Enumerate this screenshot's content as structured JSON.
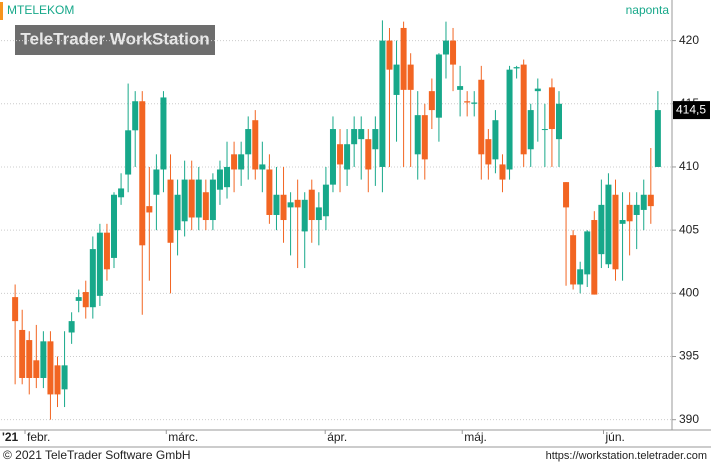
{
  "header": {
    "symbol": "MTELEKOM",
    "period": "naponta",
    "watermark": "TeleTrader WorkStation"
  },
  "footer": {
    "copyright": "© 2021 TeleTrader Software GmbH",
    "url": "https://workstation.teletrader.com"
  },
  "chart_data": {
    "type": "candlestick",
    "up_color": "#17a88a",
    "down_color": "#f26522",
    "ylim": [
      389.5,
      422.5
    ],
    "yticks": [
      390,
      395,
      400,
      405,
      410,
      415,
      420
    ],
    "grid": true,
    "last": {
      "value": 414.5,
      "label": "414,5"
    },
    "year_label": "'21",
    "xlim": [
      -2,
      93
    ],
    "xticks": [
      {
        "value": 1.4,
        "label": "febr."
      },
      {
        "value": 21.4,
        "label": "márc."
      },
      {
        "value": 43.9,
        "label": "ápr."
      },
      {
        "value": 63.3,
        "label": "máj."
      },
      {
        "value": 83.3,
        "label": "jún."
      }
    ],
    "open": [
      399.7,
      397.1,
      396.3,
      394.7,
      393.3,
      396.2,
      394.3,
      392.4,
      396.9,
      399.4,
      400.1,
      398.9,
      399.8,
      404.8,
      402.8,
      407.6,
      409.4,
      412.9,
      415.2,
      406.9,
      407.8,
      409.8,
      409,
      405,
      405.7,
      409,
      406,
      408,
      405.8,
      408.2,
      408.4,
      411,
      409.8,
      411,
      413.7,
      409.8,
      409.8,
      406.2,
      407.8,
      406.8,
      407.4,
      404.9,
      408.2,
      405.8,
      406.1,
      408.6,
      411.8,
      409.8,
      411.8,
      412.2,
      412.2,
      411.4,
      410,
      420,
      415.7,
      421,
      418.1,
      411,
      414.1,
      416,
      413.9,
      418.9,
      420,
      416.1,
      415.2,
      415,
      416.9,
      412.2,
      410.6,
      410.2,
      409.8,
      417.8,
      418.1,
      411.4,
      416,
      413,
      416.3,
      412.2,
      408.8,
      404.6,
      400.7,
      401.5,
      405.8,
      403.1,
      402.3,
      407.8,
      405.5,
      407,
      406.2,
      406.6,
      407.8,
      410
    ],
    "high": [
      400.7,
      398.7,
      397,
      397.5,
      397,
      397,
      395,
      397,
      398.5,
      400.3,
      401,
      404.5,
      405.5,
      405.5,
      408,
      409.5,
      416.6,
      416,
      416,
      410,
      411,
      416,
      411,
      409,
      410.5,
      410.5,
      410,
      409,
      409.5,
      410.5,
      412,
      412,
      412,
      414,
      414.5,
      412,
      411,
      410,
      410,
      408,
      409,
      408,
      409,
      408,
      410,
      414,
      413,
      413,
      414,
      414,
      413,
      414,
      421.6,
      421,
      420,
      421.5,
      419,
      416,
      415,
      417,
      419,
      421.5,
      421,
      418,
      416,
      416,
      418,
      413,
      414.5,
      411,
      418,
      418,
      418.5,
      415,
      417,
      415,
      417,
      416,
      408.8,
      405,
      402.5,
      405,
      406.5,
      409,
      409.5,
      409,
      408,
      408,
      408,
      409,
      411.5,
      416
    ],
    "low": [
      392.8,
      392.8,
      392,
      392.5,
      392.5,
      390,
      391,
      391,
      396,
      398.5,
      398,
      398,
      399,
      401,
      402,
      407,
      408,
      410,
      398.3,
      401,
      405,
      408,
      400,
      403,
      404.5,
      405,
      405,
      405,
      405,
      407,
      407.5,
      408,
      408.5,
      409,
      409,
      408,
      405.5,
      405,
      404,
      403,
      402,
      402,
      404,
      403.8,
      405,
      408,
      408,
      408.5,
      410,
      409,
      408,
      408.5,
      408,
      410,
      412,
      410,
      410,
      409,
      409,
      413,
      412,
      417,
      416,
      414,
      414,
      414,
      409,
      409,
      409.5,
      408,
      409,
      417,
      410,
      410,
      412,
      410,
      410,
      410,
      400.6,
      400.3,
      400,
      400.5,
      399.9,
      402,
      402,
      401,
      401,
      403,
      403.5,
      405,
      405.5,
      410
    ],
    "close": [
      397.8,
      393.3,
      393.3,
      393.3,
      396.2,
      392,
      392,
      394.3,
      397.8,
      399.7,
      398.9,
      403.5,
      404.8,
      401.9,
      407.8,
      408.3,
      412.9,
      415.2,
      403.8,
      406.4,
      409.8,
      415.5,
      404,
      407.8,
      409,
      406,
      409,
      405.8,
      409,
      409.8,
      410,
      409.8,
      411,
      413,
      409.8,
      410.2,
      406.2,
      407.8,
      405.8,
      407.2,
      406.8,
      407.4,
      405.8,
      406.8,
      408.6,
      413,
      410.2,
      411.8,
      413,
      413,
      409.8,
      413,
      420,
      417.7,
      418.1,
      416.1,
      416.1,
      414.1,
      410.6,
      414.5,
      418.9,
      420,
      418.1,
      416.4,
      415.1,
      415.1,
      411,
      410.2,
      413.7,
      409,
      417.7,
      417.9,
      411,
      414.5,
      416.2,
      413,
      413,
      415,
      406.8,
      400.7,
      401.9,
      404.9,
      399.9,
      407,
      408.6,
      401.9,
      405.8,
      405.7,
      407,
      407.8,
      406.9,
      414.5
    ]
  }
}
